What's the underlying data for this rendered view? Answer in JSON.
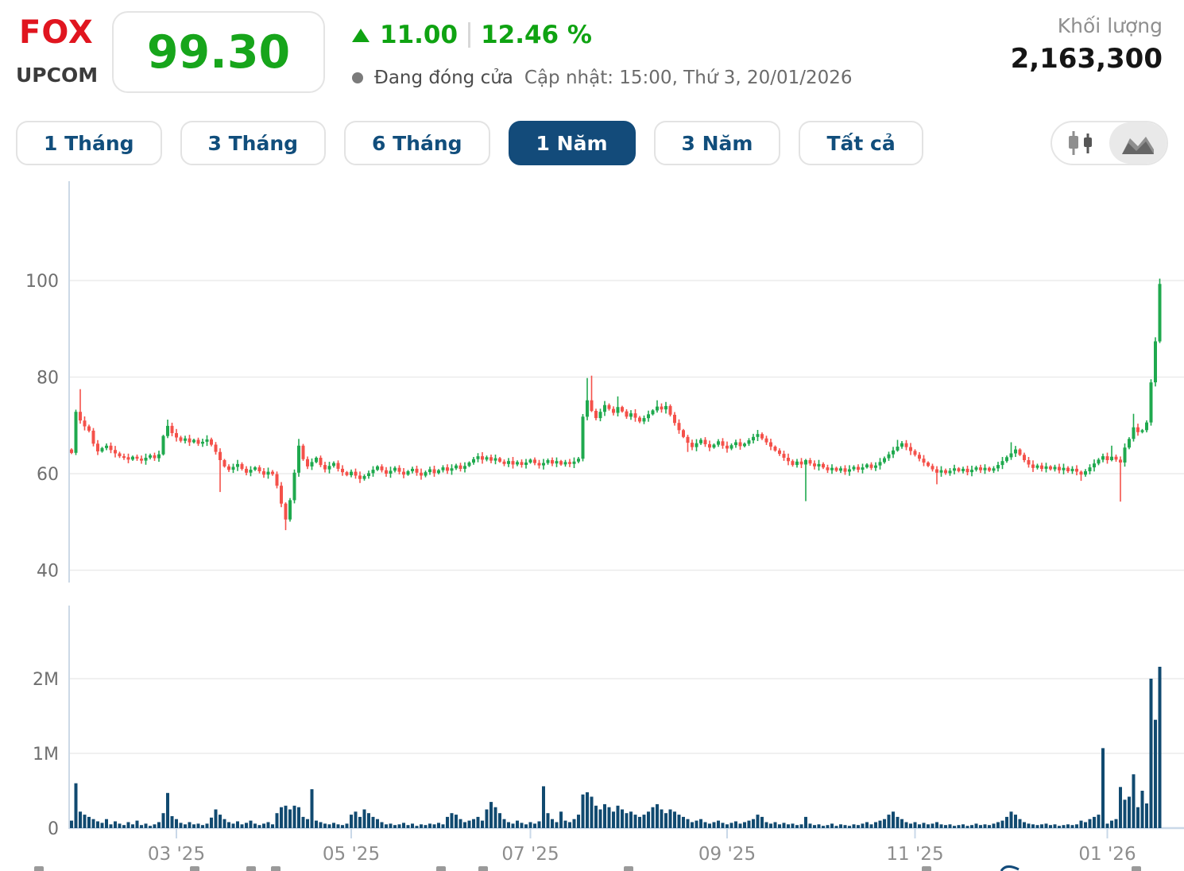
{
  "header": {
    "ticker": "FOX",
    "exchange": "UPCOM",
    "price": "99.30",
    "change_value": "11.00",
    "change_percent": "12.46 %",
    "status_text": "Đang đóng cửa",
    "updated_text": "Cập nhật: 15:00, Thứ 3, 20/01/2026",
    "volume_label": "Khối lượng",
    "volume_value": "2,163,300"
  },
  "colors": {
    "ticker_red": "#e0151f",
    "price_green": "#17a51b",
    "change_green": "#0fa312",
    "candle_up": "#1fa94e",
    "candle_down": "#f4514a",
    "volume_bar": "#114a70",
    "active_button": "#134b7a"
  },
  "range_buttons": [
    {
      "label": "1 Tháng",
      "active": false
    },
    {
      "label": "3 Tháng",
      "active": false
    },
    {
      "label": "6 Tháng",
      "active": false
    },
    {
      "label": "1 Năm",
      "active": true
    },
    {
      "label": "3 Năm",
      "active": false
    },
    {
      "label": "Tất cả",
      "active": false
    }
  ],
  "chart_type_toggle": {
    "options": [
      "candlestick",
      "area"
    ],
    "selected": "area"
  },
  "chart_data": {
    "type": "candlestick_with_volume",
    "title": "FOX price, 1 Năm (daily candles) with volume",
    "up_color": "#1fa94e",
    "down_color": "#f4514a",
    "volume_color": "#114a70",
    "price_axis": {
      "ticks": [
        40,
        60,
        80,
        100
      ],
      "range_shown": [
        38,
        115
      ]
    },
    "volume_axis": {
      "ticks": [
        {
          "label": "2M",
          "v": 2
        },
        {
          "label": "1M",
          "v": 1
        },
        {
          "label": "0",
          "v": 0
        }
      ],
      "unit": "shares (millions)"
    },
    "x_ticks": [
      {
        "label": "03 '25",
        "i": 24
      },
      {
        "label": "05 '25",
        "i": 64
      },
      {
        "label": "07 '25",
        "i": 105
      },
      {
        "label": "09 '25",
        "i": 150
      },
      {
        "label": "11 '25",
        "i": 193
      },
      {
        "label": "01 '26",
        "i": 237
      }
    ],
    "first_open": 65.0,
    "closes": [
      64.3,
      72.8,
      71.0,
      69.8,
      68.9,
      66.2,
      64.6,
      65.3,
      65.8,
      64.9,
      64.2,
      63.6,
      63.4,
      62.9,
      63.5,
      63.1,
      62.7,
      63.3,
      63.8,
      63.2,
      64.0,
      67.8,
      69.9,
      68.4,
      67.5,
      66.8,
      67.3,
      66.5,
      67.0,
      66.2,
      66.6,
      67.1,
      66.0,
      64.5,
      62.8,
      61.5,
      60.8,
      61.4,
      62.0,
      61.0,
      60.2,
      60.8,
      61.3,
      60.5,
      59.8,
      60.4,
      59.9,
      57.5,
      53.8,
      50.5,
      54.5,
      60.2,
      65.8,
      63.0,
      61.5,
      62.4,
      63.3,
      61.8,
      60.9,
      61.6,
      62.2,
      61.0,
      60.3,
      59.7,
      60.4,
      59.6,
      58.9,
      59.5,
      60.1,
      60.8,
      61.5,
      60.7,
      60.0,
      60.6,
      61.2,
      60.4,
      59.8,
      60.5,
      61.0,
      60.2,
      59.6,
      60.3,
      60.9,
      60.1,
      60.7,
      61.3,
      60.6,
      61.1,
      61.7,
      61.0,
      61.6,
      62.3,
      63.0,
      63.6,
      62.9,
      63.4,
      62.7,
      63.2,
      62.5,
      62.0,
      62.6,
      61.9,
      62.4,
      61.8,
      62.3,
      62.9,
      62.2,
      61.7,
      62.2,
      62.8,
      62.1,
      62.6,
      61.9,
      62.4,
      62.0,
      62.5,
      63.1,
      71.8,
      75.2,
      73.0,
      71.5,
      72.8,
      74.2,
      73.4,
      72.6,
      73.8,
      72.9,
      71.8,
      72.5,
      71.6,
      70.8,
      71.5,
      72.3,
      73.1,
      73.9,
      73.3,
      74.0,
      72.2,
      70.5,
      69.0,
      67.6,
      66.4,
      65.5,
      66.3,
      67.0,
      66.1,
      65.4,
      66.0,
      66.7,
      65.8,
      65.2,
      65.9,
      66.5,
      65.7,
      66.2,
      66.9,
      67.6,
      68.2,
      67.3,
      66.5,
      65.6,
      64.8,
      64.1,
      63.3,
      62.6,
      61.8,
      62.5,
      61.9,
      62.8,
      62.1,
      61.5,
      62.0,
      61.3,
      60.7,
      61.2,
      60.6,
      61.1,
      60.4,
      60.9,
      61.4,
      60.8,
      61.3,
      61.9,
      61.2,
      61.7,
      62.4,
      63.2,
      64.0,
      64.8,
      65.6,
      66.3,
      65.5,
      64.7,
      63.9,
      63.1,
      62.3,
      61.6,
      60.9,
      60.2,
      60.7,
      60.1,
      60.6,
      61.1,
      60.5,
      61.0,
      60.3,
      60.8,
      61.3,
      60.7,
      61.2,
      60.6,
      61.1,
      61.8,
      62.6,
      63.4,
      64.2,
      65.0,
      63.9,
      62.8,
      61.9,
      61.2,
      61.7,
      61.0,
      61.5,
      60.9,
      61.4,
      60.7,
      61.2,
      60.5,
      61.0,
      60.4,
      59.8,
      60.5,
      61.3,
      62.1,
      62.9,
      63.6,
      62.8,
      63.5,
      62.9,
      62.3,
      65.4,
      67.2,
      69.6,
      68.6,
      69.0,
      70.6,
      78.9,
      87.4,
      99.3
    ],
    "wick_high": {
      "2": 77.5,
      "22": 71.2,
      "52": 67.2,
      "118": 79.8,
      "119": 80.3,
      "125": 76.0,
      "134": 75.2,
      "189": 67.0,
      "215": 66.5,
      "238": 65.8,
      "243": 72.4,
      "249": 100.4
    },
    "wick_low": {
      "34": 56.2,
      "49": 48.3,
      "141": 64.5,
      "168": 54.3,
      "198": 57.8,
      "231": 58.5,
      "240": 54.2
    },
    "volumes_m": [
      0.1,
      0.6,
      0.22,
      0.18,
      0.15,
      0.12,
      0.09,
      0.07,
      0.12,
      0.05,
      0.09,
      0.06,
      0.04,
      0.08,
      0.05,
      0.1,
      0.04,
      0.06,
      0.03,
      0.05,
      0.08,
      0.2,
      0.47,
      0.16,
      0.12,
      0.07,
      0.05,
      0.08,
      0.05,
      0.06,
      0.04,
      0.06,
      0.14,
      0.25,
      0.18,
      0.12,
      0.08,
      0.06,
      0.09,
      0.05,
      0.07,
      0.1,
      0.06,
      0.04,
      0.06,
      0.08,
      0.05,
      0.2,
      0.28,
      0.3,
      0.25,
      0.3,
      0.28,
      0.15,
      0.12,
      0.52,
      0.1,
      0.08,
      0.06,
      0.05,
      0.07,
      0.05,
      0.04,
      0.06,
      0.18,
      0.22,
      0.15,
      0.25,
      0.2,
      0.15,
      0.12,
      0.08,
      0.05,
      0.06,
      0.04,
      0.05,
      0.07,
      0.04,
      0.06,
      0.03,
      0.05,
      0.04,
      0.06,
      0.05,
      0.07,
      0.05,
      0.15,
      0.2,
      0.18,
      0.12,
      0.08,
      0.1,
      0.12,
      0.15,
      0.1,
      0.25,
      0.35,
      0.28,
      0.2,
      0.12,
      0.08,
      0.06,
      0.1,
      0.07,
      0.05,
      0.08,
      0.06,
      0.09,
      0.56,
      0.2,
      0.12,
      0.08,
      0.22,
      0.1,
      0.08,
      0.12,
      0.18,
      0.45,
      0.48,
      0.42,
      0.3,
      0.25,
      0.32,
      0.28,
      0.22,
      0.3,
      0.25,
      0.2,
      0.22,
      0.18,
      0.15,
      0.18,
      0.22,
      0.28,
      0.32,
      0.25,
      0.2,
      0.25,
      0.22,
      0.18,
      0.15,
      0.12,
      0.08,
      0.1,
      0.12,
      0.08,
      0.06,
      0.08,
      0.1,
      0.07,
      0.05,
      0.07,
      0.09,
      0.06,
      0.08,
      0.1,
      0.12,
      0.18,
      0.15,
      0.08,
      0.06,
      0.08,
      0.05,
      0.07,
      0.05,
      0.06,
      0.04,
      0.05,
      0.15,
      0.06,
      0.04,
      0.05,
      0.03,
      0.04,
      0.06,
      0.03,
      0.05,
      0.04,
      0.03,
      0.05,
      0.04,
      0.06,
      0.08,
      0.05,
      0.08,
      0.1,
      0.12,
      0.18,
      0.22,
      0.15,
      0.12,
      0.08,
      0.06,
      0.08,
      0.05,
      0.07,
      0.05,
      0.06,
      0.08,
      0.05,
      0.04,
      0.05,
      0.03,
      0.04,
      0.05,
      0.03,
      0.04,
      0.06,
      0.04,
      0.05,
      0.04,
      0.06,
      0.08,
      0.1,
      0.15,
      0.22,
      0.18,
      0.12,
      0.08,
      0.06,
      0.05,
      0.04,
      0.05,
      0.06,
      0.04,
      0.05,
      0.03,
      0.04,
      0.05,
      0.04,
      0.05,
      0.1,
      0.08,
      0.12,
      0.15,
      0.18,
      1.07,
      0.06,
      0.1,
      0.12,
      0.55,
      0.38,
      0.42,
      0.72,
      0.28,
      0.5,
      0.33,
      2.0,
      1.45,
      2.16
    ]
  }
}
